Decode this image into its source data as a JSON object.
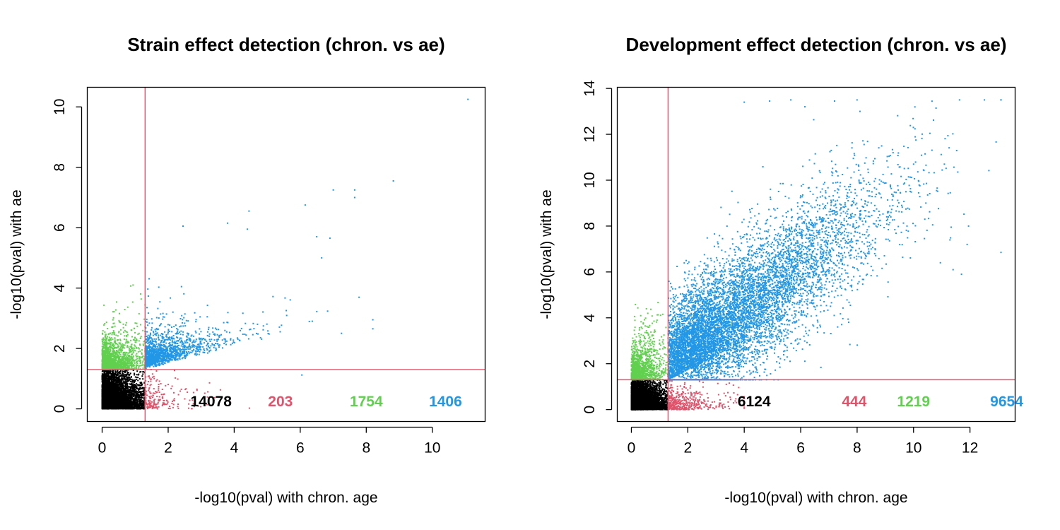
{
  "chart_data": [
    {
      "type": "scatter",
      "title": "Strain effect detection (chron. vs ae)",
      "xlabel": "-log10(pval) with chron. age",
      "ylabel": "-log10(pval) with ae",
      "xlim": [
        -0.45,
        11.6
      ],
      "ylim": [
        -0.42,
        10.65
      ],
      "xticks": [
        0,
        2,
        4,
        6,
        8,
        10
      ],
      "yticks": [
        0,
        2,
        4,
        6,
        8,
        10
      ],
      "threshold": 1.30103,
      "grid": false,
      "colors": {
        "none": "#000000",
        "chron_only": "#DF536B",
        "ae_only": "#61D04F",
        "both": "#2297E6",
        "threshold_line": "#DF536B"
      },
      "counts": [
        {
          "label": "14078",
          "color": "#000000"
        },
        {
          "label": "203",
          "color": "#DF536B"
        },
        {
          "label": "1754",
          "color": "#61D04F"
        },
        {
          "label": "1406",
          "color": "#2297E6"
        }
      ],
      "series": [
        {
          "group": "none",
          "color": "#000000",
          "count": 14078,
          "distribution": {
            "xmax": 1.30103,
            "ymax": 1.30103
          }
        },
        {
          "group": "chron_only",
          "color": "#DF536B",
          "count": 203,
          "distribution": {
            "xmin": 1.30103,
            "xmax": 6.1,
            "ymax": 1.30103
          }
        },
        {
          "group": "ae_only",
          "color": "#61D04F",
          "count": 1754,
          "distribution": {
            "xmax": 1.30103,
            "ymin": 1.30103,
            "ymax": 4.6
          }
        },
        {
          "group": "both",
          "color": "#2297E6",
          "count": 1406,
          "distribution": {
            "xmin": 1.30103,
            "xmax": 9.0,
            "ymin": 1.30103,
            "ymax": 7.6
          }
        }
      ],
      "outliers": [
        {
          "x": 11.08,
          "y": 10.25
        },
        {
          "x": 8.82,
          "y": 7.55
        },
        {
          "x": 7.65,
          "y": 7.25
        },
        {
          "x": 7.0,
          "y": 7.25
        },
        {
          "x": 7.65,
          "y": 7.0
        },
        {
          "x": 6.15,
          "y": 6.75
        },
        {
          "x": 4.45,
          "y": 6.55
        },
        {
          "x": 3.8,
          "y": 6.15
        },
        {
          "x": 2.45,
          "y": 6.05
        },
        {
          "x": 4.4,
          "y": 5.95
        },
        {
          "x": 6.5,
          "y": 5.7
        },
        {
          "x": 6.9,
          "y": 5.65
        },
        {
          "x": 6.65,
          "y": 5.0
        },
        {
          "x": 8.2,
          "y": 2.95
        },
        {
          "x": 8.2,
          "y": 2.65
        },
        {
          "x": 7.25,
          "y": 2.5
        },
        {
          "x": 6.05,
          "y": 1.12
        }
      ]
    },
    {
      "type": "scatter",
      "title": "Development effect detection (chron. vs ae)",
      "xlabel": "-log10(pval) with chron. age",
      "ylabel": "-log10(pval) with ae",
      "xlim": [
        -0.5,
        13.6
      ],
      "ylim": [
        -0.52,
        14.05
      ],
      "xticks": [
        0,
        2,
        4,
        6,
        8,
        10,
        12
      ],
      "yticks": [
        0,
        2,
        4,
        6,
        8,
        10,
        12,
        14
      ],
      "threshold": 1.30103,
      "grid": false,
      "colors": {
        "none": "#000000",
        "chron_only": "#DF536B",
        "ae_only": "#61D04F",
        "both": "#2297E6",
        "threshold_line": "#DF536B"
      },
      "counts": [
        {
          "label": "6124",
          "color": "#000000"
        },
        {
          "label": "444",
          "color": "#DF536B"
        },
        {
          "label": "1219",
          "color": "#61D04F"
        },
        {
          "label": "9654",
          "color": "#2297E6"
        }
      ],
      "series": [
        {
          "group": "none",
          "color": "#000000",
          "count": 6124,
          "distribution": {
            "xmax": 1.30103,
            "ymax": 1.30103
          }
        },
        {
          "group": "chron_only",
          "color": "#DF536B",
          "count": 444,
          "distribution": {
            "xmin": 1.30103,
            "xmax": 4.0,
            "ymax": 1.30103
          }
        },
        {
          "group": "ae_only",
          "color": "#61D04F",
          "count": 1219,
          "distribution": {
            "xmax": 1.30103,
            "ymin": 1.30103,
            "ymax": 6.4
          }
        },
        {
          "group": "both",
          "color": "#2297E6",
          "count": 9654,
          "distribution": {
            "xmin": 1.30103,
            "xmax": 13.1,
            "ymin": 1.30103,
            "ymax": 13.5
          }
        }
      ],
      "outliers": [
        {
          "x": 13.1,
          "y": 6.85
        },
        {
          "x": 11.9,
          "y": 7.2
        },
        {
          "x": 11.3,
          "y": 9.45
        },
        {
          "x": 11.95,
          "y": 8.0
        },
        {
          "x": 11.7,
          "y": 5.9
        },
        {
          "x": 11.4,
          "y": 6.1
        },
        {
          "x": 10.95,
          "y": 6.4
        },
        {
          "x": 4.9,
          "y": 13.45
        },
        {
          "x": 4.0,
          "y": 13.4
        },
        {
          "x": 5.65,
          "y": 13.5
        },
        {
          "x": 6.15,
          "y": 13.2
        },
        {
          "x": 7.2,
          "y": 13.45
        },
        {
          "x": 8.1,
          "y": 13.0
        },
        {
          "x": 10.0,
          "y": 10.7
        },
        {
          "x": 10.4,
          "y": 8.3
        }
      ]
    }
  ]
}
